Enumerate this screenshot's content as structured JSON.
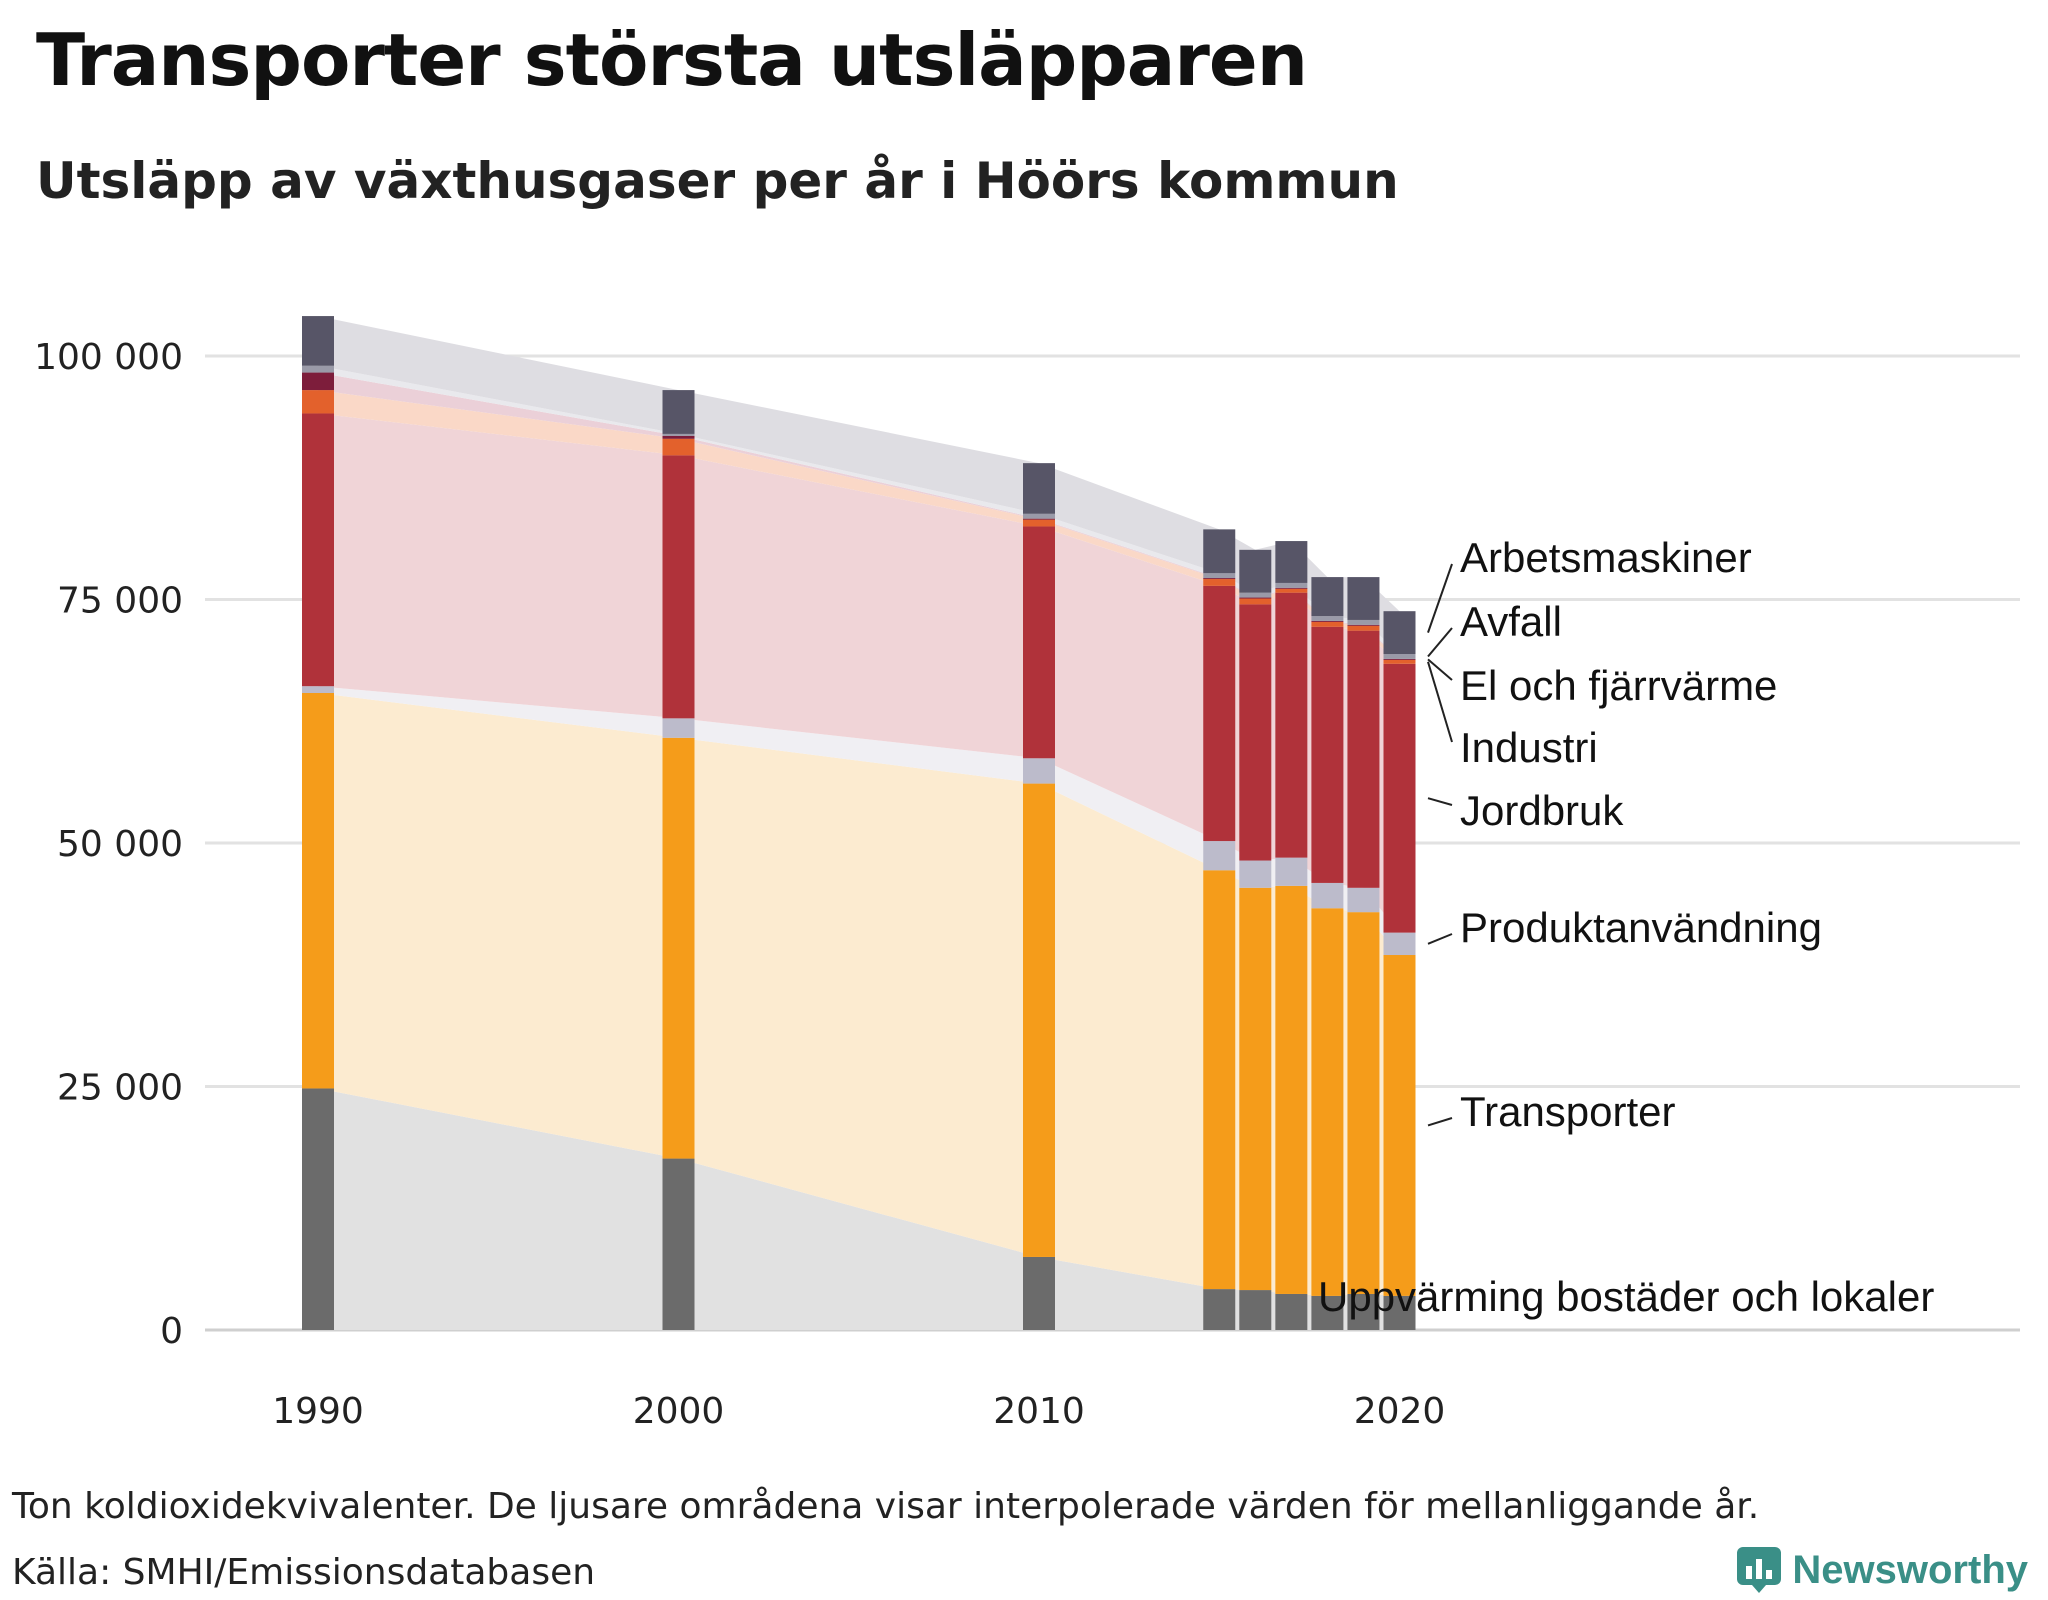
{
  "title": "Transporter största utsläpparen",
  "subtitle": "Utsläpp av växthusgaser per år i Höörs kommun",
  "footnote": "Ton koldioxidekvivalenter. De ljusare områdena visar interpolerade värden för mellanliggande år.",
  "source": "Källa: SMHI/Emissionsdatabasen",
  "brand": "Newsworthy",
  "chart_data": {
    "type": "bar",
    "stacked": true,
    "title": "Utsläpp av växthusgaser per år i Höörs kommun",
    "ylabel": "Ton koldioxidekvivalenter",
    "ylim": [
      0,
      105000
    ],
    "yticks": [
      0,
      25000,
      50000,
      75000,
      100000
    ],
    "ytick_labels": [
      "0",
      "25 000",
      "50 000",
      "75 000",
      "100 000"
    ],
    "xticks": [
      1990,
      2000,
      2010,
      2020
    ],
    "xtick_labels": [
      "1990",
      "2000",
      "2010",
      "2020"
    ],
    "x": [
      1990,
      2000,
      2010,
      2015,
      2016,
      2017,
      2018,
      2019,
      2020
    ],
    "series": [
      {
        "name": "Uppvärming bostäder och lokaler",
        "color": "#6b6b6b",
        "light": "#e1e1e1",
        "values": [
          24800,
          17600,
          7500,
          4200,
          4100,
          3700,
          3500,
          3700,
          3500
        ]
      },
      {
        "name": "Transporter",
        "color": "#f59c1a",
        "light": "#fcebd0",
        "values": [
          40600,
          43200,
          48600,
          43000,
          41300,
          41900,
          39800,
          39200,
          35000
        ]
      },
      {
        "name": "Produktanvändning",
        "color": "#bcbbcb",
        "light": "#f0eff3",
        "values": [
          700,
          2000,
          2600,
          3000,
          2800,
          2900,
          2600,
          2500,
          2300
        ]
      },
      {
        "name": "Jordbruk",
        "color": "#b0323a",
        "light": "#f0d4d7",
        "values": [
          28000,
          27000,
          23800,
          26200,
          26300,
          27200,
          26300,
          26400,
          27600
        ]
      },
      {
        "name": "Industri",
        "color": "#e3612c",
        "light": "#fad8c7",
        "values": [
          2400,
          1700,
          700,
          700,
          600,
          400,
          500,
          500,
          400
        ]
      },
      {
        "name": "El och fjärrvärme",
        "color": "#7d1d3b",
        "light": "#ebd0d8",
        "values": [
          1800,
          300,
          100,
          100,
          100,
          100,
          100,
          100,
          100
        ]
      },
      {
        "name": "Avfall",
        "color": "#9a9aa8",
        "light": "#e9e9ed",
        "values": [
          700,
          200,
          500,
          500,
          500,
          500,
          500,
          500,
          500
        ]
      },
      {
        "name": "Arbetsmaskiner",
        "color": "#575567",
        "light": "#dedde2",
        "values": [
          5100,
          4500,
          5200,
          4500,
          4400,
          4300,
          4000,
          4400,
          4400
        ]
      }
    ],
    "legend_labels": [
      "Arbetsmaskiner",
      "Avfall",
      "El och fjärrvärme",
      "Industri",
      "Jordbruk",
      "Produktanvändning",
      "Transporter",
      "Uppvärming bostäder och lokaler"
    ],
    "legend_placement": "right, labels at series end"
  }
}
